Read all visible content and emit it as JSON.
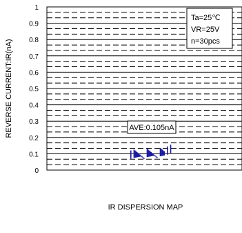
{
  "chart_data": {
    "type": "scatter",
    "ylabel": "REVERSE CURRENT:IR(nA)",
    "xlabel": "IR DISPERSION MAP",
    "ylim": [
      0,
      1
    ],
    "y_ticks": [
      "0",
      "0.1",
      "0.2",
      "0.3",
      "0.4",
      "0.5",
      "0.6",
      "0.7",
      "0.8",
      "0.9",
      "1"
    ],
    "conditions": [
      "Ta=25℃",
      "VR=25V",
      "n=30pcs"
    ],
    "average_label": "AVE:0.105nA",
    "grid": true,
    "legend_position": "top-right",
    "marker_color": "#1a1aa0",
    "series": [
      {
        "values": [
          0.105,
          0.11,
          0.1,
          0.12,
          0.095,
          0.13,
          0.108,
          0.104,
          0.102,
          0.098,
          0.112,
          0.106,
          0.11,
          0.103,
          0.1,
          0.107,
          0.109,
          0.104,
          0.101,
          0.099,
          0.105,
          0.103,
          0.1,
          0.102,
          0.104,
          0.106,
          0.1,
          0.103,
          0.101,
          0.1
        ]
      }
    ]
  }
}
